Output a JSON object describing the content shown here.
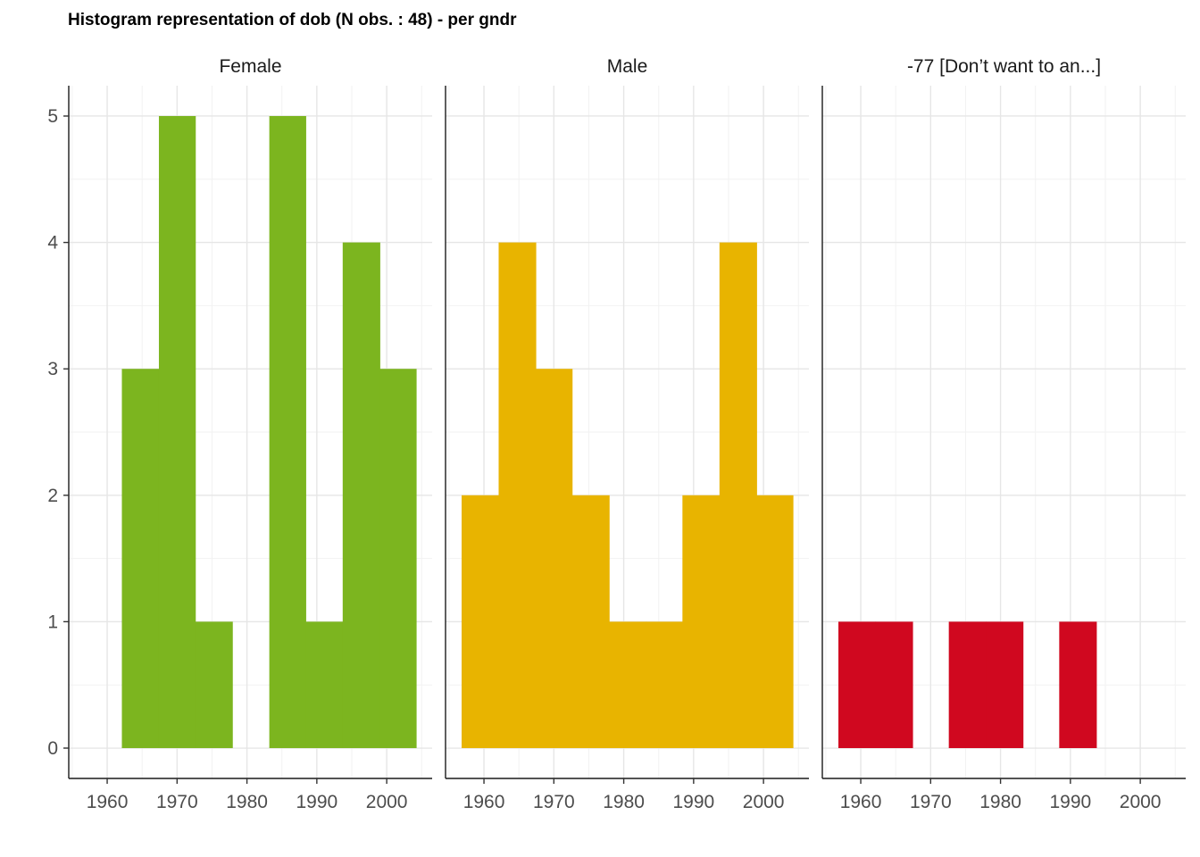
{
  "chart_data": {
    "type": "bar",
    "title": "Histogram representation of dob (N obs. : 48) - per gndr",
    "xlabel": "",
    "ylabel": "",
    "xlim": [
      1954.5,
      2006.5
    ],
    "ylim": [
      -0.24,
      5.24
    ],
    "x_ticks": [
      1960,
      1970,
      1980,
      1990,
      2000
    ],
    "y_ticks": [
      0,
      1,
      2,
      3,
      4,
      5
    ],
    "grid": true,
    "bin_width": 5.26,
    "panels": [
      {
        "name": "Female",
        "color": "#7cb51f",
        "bins": [
          {
            "start": 1962.1,
            "end": 1967.4,
            "count": 3
          },
          {
            "start": 1967.4,
            "end": 1972.6,
            "count": 5
          },
          {
            "start": 1972.6,
            "end": 1977.9,
            "count": 1
          },
          {
            "start": 1977.9,
            "end": 1983.2,
            "count": 0
          },
          {
            "start": 1983.2,
            "end": 1988.4,
            "count": 5
          },
          {
            "start": 1988.4,
            "end": 1993.7,
            "count": 1
          },
          {
            "start": 1993.7,
            "end": 1999.0,
            "count": 4
          },
          {
            "start": 1999.0,
            "end": 2004.2,
            "count": 3
          }
        ]
      },
      {
        "name": "Male",
        "color": "#e8b400",
        "bins": [
          {
            "start": 1956.8,
            "end": 1962.1,
            "count": 2
          },
          {
            "start": 1962.1,
            "end": 1967.4,
            "count": 4
          },
          {
            "start": 1967.4,
            "end": 1972.6,
            "count": 3
          },
          {
            "start": 1972.6,
            "end": 1977.9,
            "count": 2
          },
          {
            "start": 1977.9,
            "end": 1983.2,
            "count": 1
          },
          {
            "start": 1983.2,
            "end": 1988.4,
            "count": 1
          },
          {
            "start": 1988.4,
            "end": 1993.7,
            "count": 2
          },
          {
            "start": 1993.7,
            "end": 1999.0,
            "count": 4
          },
          {
            "start": 1999.0,
            "end": 2004.2,
            "count": 2
          }
        ]
      },
      {
        "name": "-77 [Don’t want to an...]",
        "color": "#d0081f",
        "bins": [
          {
            "start": 1956.8,
            "end": 1962.1,
            "count": 1
          },
          {
            "start": 1962.1,
            "end": 1967.4,
            "count": 1
          },
          {
            "start": 1967.4,
            "end": 1972.6,
            "count": 0
          },
          {
            "start": 1972.6,
            "end": 1977.9,
            "count": 1
          },
          {
            "start": 1977.9,
            "end": 1983.2,
            "count": 1
          },
          {
            "start": 1983.2,
            "end": 1988.4,
            "count": 0
          },
          {
            "start": 1988.4,
            "end": 1993.7,
            "count": 1
          }
        ]
      }
    ]
  }
}
